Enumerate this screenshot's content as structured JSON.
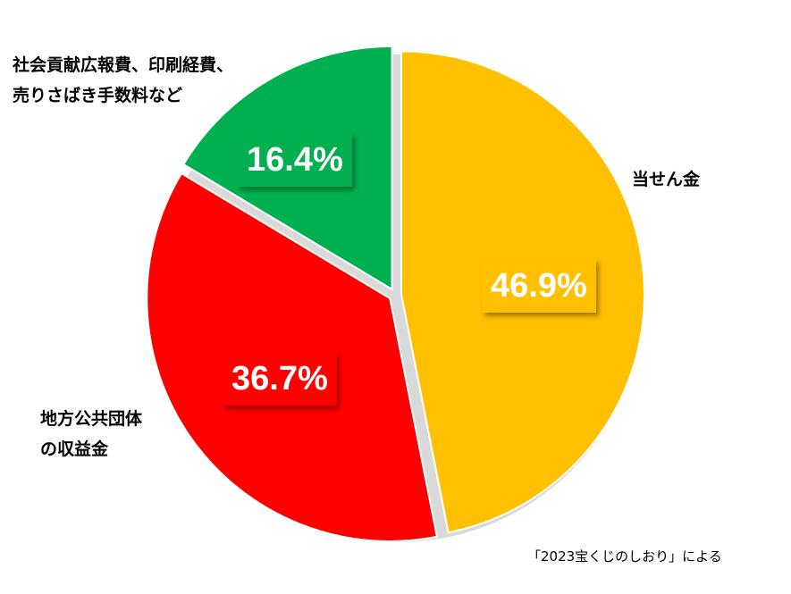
{
  "chart_data": {
    "type": "pie",
    "slices": [
      {
        "label_lines": [
          "当せん金"
        ],
        "value": 46.9,
        "value_label": "46.9%",
        "color": "#FFC000"
      },
      {
        "label_lines": [
          "地方公共団体",
          "の収益金"
        ],
        "value": 36.7,
        "value_label": "36.7%",
        "color": "#FF0000"
      },
      {
        "label_lines": [
          "社会貢献広報費、印刷経費、",
          "売りさばき手数料など"
        ],
        "value": 16.4,
        "value_label": "16.4%",
        "color": "#00B050"
      }
    ],
    "start_angle": "12 o'clock",
    "direction": "clockwise",
    "legend": "none"
  },
  "source_note": "「2023宝くじのしおり」による"
}
